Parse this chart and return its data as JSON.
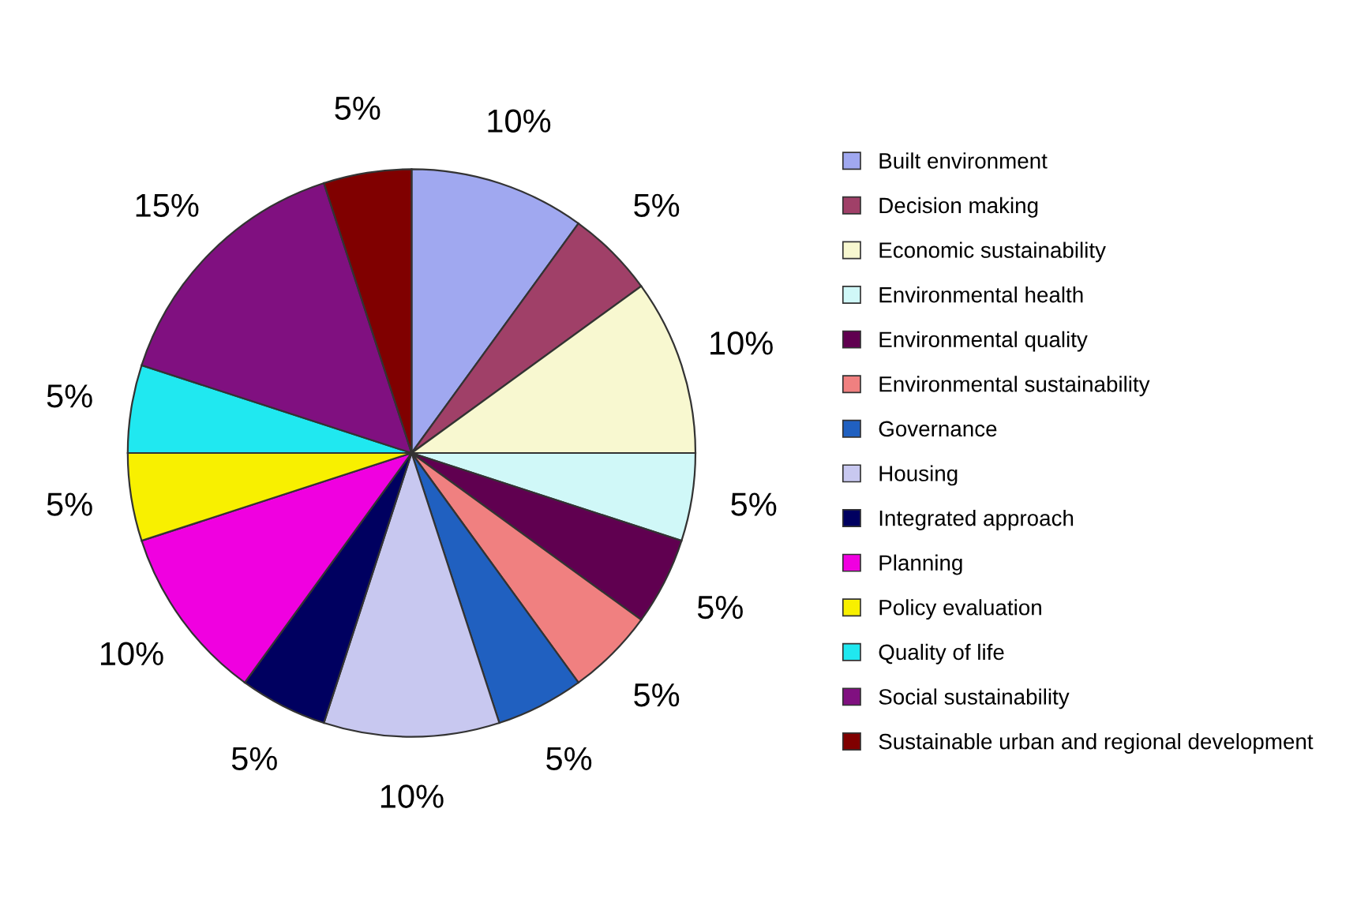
{
  "chart_data": {
    "type": "pie",
    "categories": [
      "Built environment",
      "Decision making",
      "Economic sustainability",
      "Environmental health",
      "Environmental quality",
      "Environmental sustainability",
      "Governance",
      "Housing",
      "Integrated approach",
      "Planning",
      "Policy evaluation",
      "Quality of life",
      "Social sustainability",
      "Sustainable urban and regional development"
    ],
    "values": [
      10,
      5,
      10,
      5,
      5,
      5,
      5,
      10,
      5,
      10,
      5,
      5,
      15,
      5
    ],
    "value_labels": [
      "10%",
      "5%",
      "10%",
      "5%",
      "5%",
      "5%",
      "5%",
      "10%",
      "5%",
      "10%",
      "5%",
      "5%",
      "15%",
      "5%"
    ],
    "colors": [
      "#a0a8f0",
      "#a04068",
      "#f8f8d0",
      "#d0f8f8",
      "#600050",
      "#f08080",
      "#2060c0",
      "#c8c8f0",
      "#000060",
      "#f000e0",
      "#f8f000",
      "#20e8f0",
      "#801080",
      "#800000"
    ],
    "legend": "right"
  }
}
